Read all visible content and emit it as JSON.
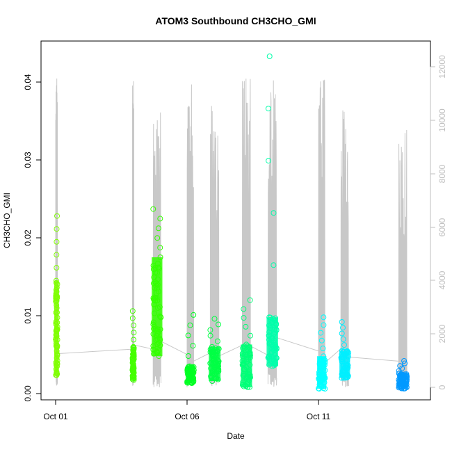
{
  "chart_data": {
    "type": "scatter",
    "title": "ATOM3 Southbound CH3CHO_GMI",
    "xlabel": "Date",
    "ylabel": "CH3CHO_GMI",
    "x_ticks": [
      "Oct 01",
      "Oct 06",
      "Oct 11"
    ],
    "y_ticks": [
      "0.00",
      "0.01",
      "0.02",
      "0.03",
      "0.04"
    ],
    "y2_ticks": [
      "0",
      "2000",
      "4000",
      "6000",
      "8000",
      "10000",
      "12000"
    ],
    "xlim": [
      "2017-09-30T20:00",
      "2017-10-15T12:00"
    ],
    "ylim": [
      -0.0007,
      0.0438
    ],
    "y2lim": [
      -300,
      12700
    ],
    "grid": false,
    "colors": {
      "altitude_line": "#c8c8c8",
      "right_axis": "#bfbfbf"
    },
    "series": [
      {
        "kind": "flight-points",
        "flights": [
          {
            "day": 1.0,
            "days": 0.07,
            "min": 0.0023,
            "max": 0.0145,
            "peak": 0.0228,
            "color": "#7fff00"
          },
          {
            "day": 3.92,
            "days": 0.06,
            "min": 0.0017,
            "max": 0.006,
            "peak": 0.0106,
            "color": "#44ff00"
          },
          {
            "day": 4.71,
            "days": 0.3,
            "min": 0.0048,
            "max": 0.0175,
            "peak": 0.0237,
            "color": "#33ff00"
          },
          {
            "day": 6.0,
            "days": 0.26,
            "min": 0.0013,
            "max": 0.0035,
            "peak": 0.0101,
            "color": "#00ff22"
          },
          {
            "day": 6.88,
            "days": 0.34,
            "min": 0.0016,
            "max": 0.006,
            "peak": 0.0096,
            "color": "#00ff44"
          },
          {
            "day": 8.1,
            "days": 0.32,
            "min": 0.0008,
            "max": 0.0063,
            "peak": 0.012,
            "color": "#00ff77"
          },
          {
            "day": 9.08,
            "days": 0.33,
            "min": 0.0035,
            "max": 0.0098,
            "peak": 0.0433,
            "color": "#00ffaa"
          },
          {
            "day": 11.0,
            "days": 0.25,
            "min": 0.0006,
            "max": 0.0048,
            "peak": 0.0098,
            "color": "#00ffff"
          },
          {
            "day": 11.85,
            "days": 0.3,
            "min": 0.002,
            "max": 0.0055,
            "peak": 0.0092,
            "color": "#00eeff"
          },
          {
            "day": 14.05,
            "days": 0.32,
            "min": 0.0006,
            "max": 0.0026,
            "peak": 0.0042,
            "color": "#0099ff"
          }
        ]
      },
      {
        "kind": "altitude-trace",
        "axis": "right",
        "flights": [
          {
            "day": 1.0,
            "days": 0.07,
            "peak": 12000
          },
          {
            "day": 3.92,
            "days": 0.06,
            "peak": 12300
          },
          {
            "day": 4.71,
            "days": 0.3,
            "peak": 10300
          },
          {
            "day": 6.0,
            "days": 0.26,
            "peak": 12300
          },
          {
            "day": 6.88,
            "days": 0.34,
            "peak": 10900
          },
          {
            "day": 8.1,
            "days": 0.32,
            "peak": 11800
          },
          {
            "day": 9.08,
            "days": 0.33,
            "peak": 12000
          },
          {
            "day": 11.0,
            "days": 0.25,
            "peak": 11600
          },
          {
            "day": 11.85,
            "days": 0.3,
            "peak": 10400
          },
          {
            "day": 14.05,
            "days": 0.32,
            "peak": 9800
          }
        ]
      }
    ]
  }
}
